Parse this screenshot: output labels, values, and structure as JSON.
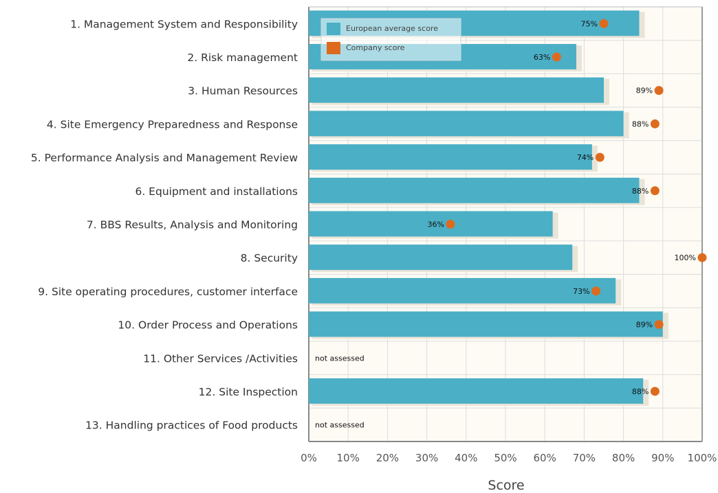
{
  "chart_data": {
    "type": "bar",
    "orientation": "horizontal",
    "categories": [
      "1. Management System and Responsibility",
      "2. Risk management",
      "3. Human Resources",
      "4. Site Emergency Preparedness and Response",
      "5. Performance Analysis and Management Review",
      "6. Equipment and installations",
      "7. BBS Results, Analysis and Monitoring",
      "8. Security",
      "9. Site operating procedures, customer interface",
      "10. Order Process and Operations",
      "11. Other Services /Activities",
      "12. Site Inspection",
      "13. Handling practices of Food products"
    ],
    "series": [
      {
        "name": "European average score",
        "values": [
          84,
          68,
          75,
          80,
          72,
          84,
          62,
          67,
          78,
          90,
          null,
          85,
          null
        ],
        "color": "#4bafc6"
      },
      {
        "name": "Company score",
        "values": [
          75,
          63,
          89,
          88,
          74,
          88,
          36,
          100,
          73,
          89,
          null,
          88,
          null
        ],
        "labels": [
          "75%",
          "63%",
          "89%",
          "88%",
          "74%",
          "88%",
          "36%",
          "100%",
          "73%",
          "89%",
          "not assessed",
          "88%",
          "not assessed"
        ],
        "color": "#dd6b1f"
      }
    ],
    "xlabel": "Score",
    "xticks": [
      "0%",
      "10%",
      "20%",
      "30%",
      "40%",
      "50%",
      "60%",
      "70%",
      "80%",
      "90%",
      "100%"
    ],
    "xlim": [
      0,
      100
    ],
    "grid": true,
    "legend_position": "top-left"
  }
}
